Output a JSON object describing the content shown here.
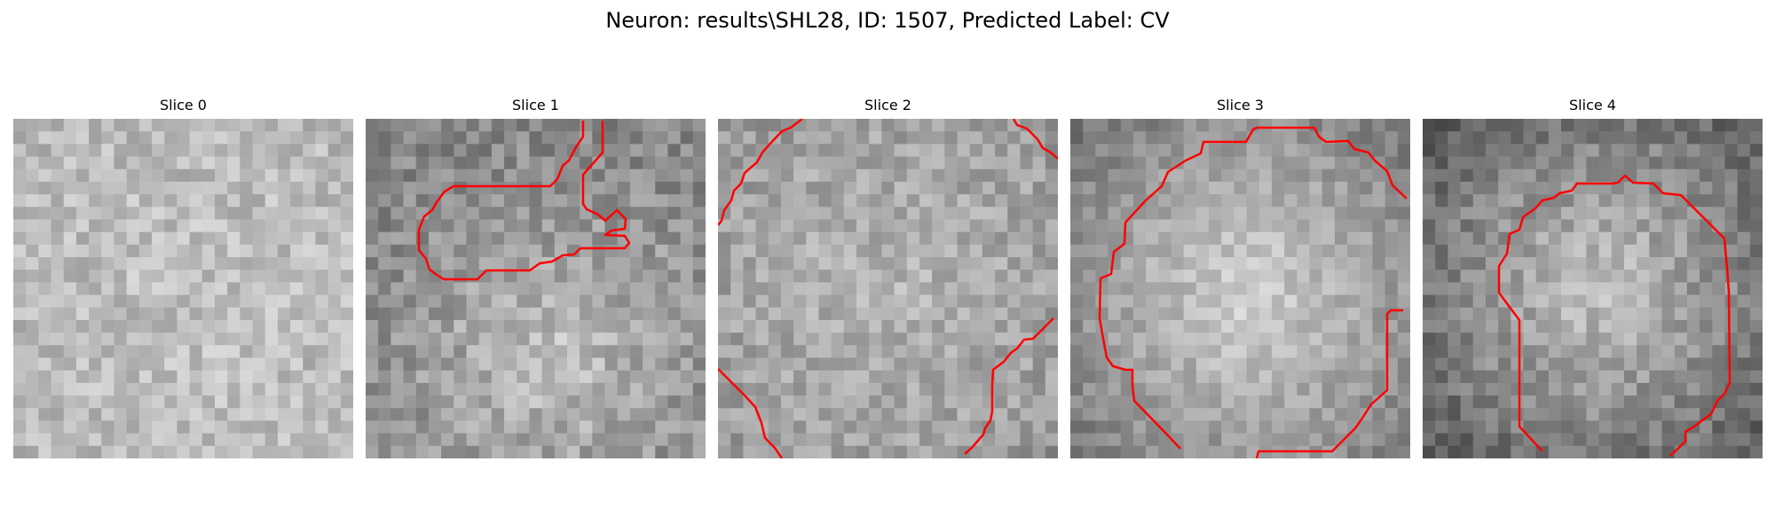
{
  "figure": {
    "title": "Neuron: results\\SHL28, ID: 1507, Predicted Label: CV"
  },
  "slices": [
    {
      "label": "Slice 0"
    },
    {
      "label": "Slice 1"
    },
    {
      "label": "Slice 2"
    },
    {
      "label": "Slice 3"
    },
    {
      "label": "Slice 4"
    }
  ],
  "colors": {
    "contour": "#ff0000",
    "background": "#ffffff"
  }
}
